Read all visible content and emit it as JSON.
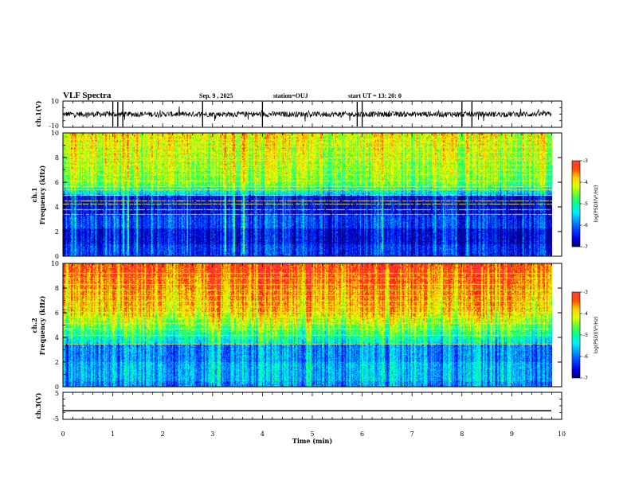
{
  "header": {
    "title": "VLF Spectra",
    "date": "Sep. 9 , 2025",
    "station": "station=OUJ",
    "start_ut": "start  UT =  13: 20: 0"
  },
  "colors": {
    "spectrum_scale": [
      "#00007a",
      "#0000ff",
      "#00a0ff",
      "#00ffff",
      "#00ff60",
      "#d0ff00",
      "#ffff00",
      "#ff8000",
      "#ff0000",
      "#ffffff"
    ],
    "trace": "#000000",
    "interference_lines": "#ffff40"
  },
  "chart_data": [
    {
      "type": "line",
      "name": "ch1-waveform",
      "ylabel": "ch.1(V)",
      "ylim": [
        -10,
        10
      ],
      "yticks": [
        "10",
        "-10"
      ],
      "xlim": [
        0,
        10
      ],
      "baseline": 0,
      "note_spikes_x": [
        1.0,
        1.1,
        1.2,
        2.8,
        4.0,
        5.9,
        6.0,
        8.0,
        8.2
      ]
    },
    {
      "type": "heatmap",
      "name": "ch1-spectrogram",
      "ylabel_line1": "ch.1",
      "ylabel_line2": "Frequency (kHz)",
      "ylim": [
        0,
        10
      ],
      "yticks": [
        "0",
        "2",
        "4",
        "6",
        "8",
        "10"
      ],
      "xlim": [
        0,
        10
      ],
      "colorbar": {
        "label": "log(PSD)(V²/Hz)",
        "range": [
          -7,
          -3
        ],
        "ticks": [
          "-3",
          "-4",
          "-5",
          "-6",
          "-7"
        ]
      },
      "hot_top_level": 0.62,
      "dark_band_khz": [
        0,
        5.2
      ],
      "bright_band_khz": [
        6.0,
        10
      ]
    },
    {
      "type": "heatmap",
      "name": "ch2-spectrogram",
      "ylabel_line1": "ch.2",
      "ylabel_line2": "Frequency (kHz)",
      "ylim": [
        0,
        10
      ],
      "yticks": [
        "0",
        "2",
        "4",
        "6",
        "8",
        "10"
      ],
      "xlim": [
        0,
        10
      ],
      "colorbar": {
        "label": "log(PSD)(V²/Hz)",
        "range": [
          -7,
          -3
        ],
        "ticks": [
          "-3",
          "-4",
          "-5",
          "-6",
          "-7"
        ]
      },
      "hot_top_level": 0.9,
      "dark_band_khz": [
        0,
        3.5
      ],
      "bright_band_khz": [
        5.5,
        10
      ]
    },
    {
      "type": "line",
      "name": "ch3-waveform",
      "ylabel": "ch.3(V)",
      "ylim": [
        -5,
        5
      ],
      "yticks": [
        "5",
        "0",
        "-5"
      ],
      "xlim": [
        0,
        10
      ],
      "xlabel": "Time  (min)",
      "xticks": [
        "0",
        "1",
        "2",
        "3",
        "4",
        "5",
        "6",
        "7",
        "8",
        "9",
        "10"
      ],
      "constant_value": -1.8
    }
  ]
}
